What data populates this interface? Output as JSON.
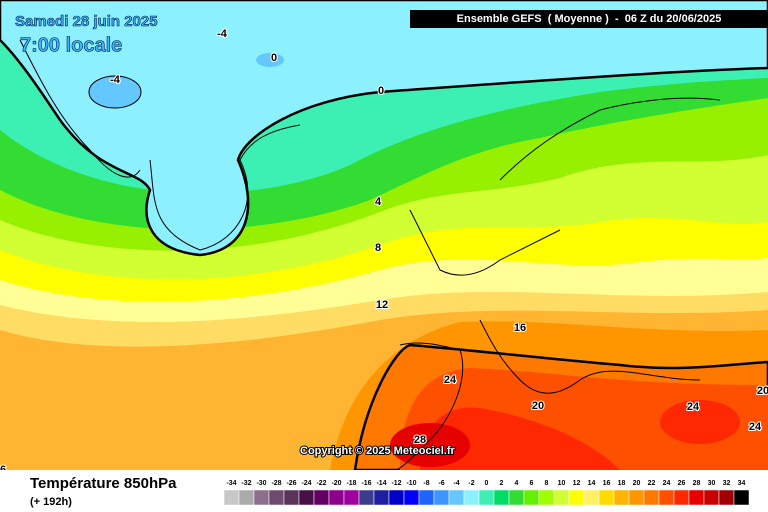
{
  "header": {
    "date": "Samedi 28 juin 2025",
    "time": "7:00 locale",
    "model": "Ensemble GEFS  ( Moyenne )  -  06 Z du 20/06/2025"
  },
  "copyright": "Copyright © 2025 Meteociel.fr",
  "footer": {
    "title": "Température 850hPa",
    "lead": "(+ 192h)"
  },
  "contour_labels": [
    -4,
    -4,
    0,
    0,
    4,
    8,
    12,
    16,
    20,
    24,
    24,
    24,
    20,
    28,
    6
  ],
  "scale": [
    {
      "value": -34,
      "color": "#c8c8c8"
    },
    {
      "value": -32,
      "color": "#aaaaaa"
    },
    {
      "value": -30,
      "color": "#8c6e8c"
    },
    {
      "value": -28,
      "color": "#6e4b6e"
    },
    {
      "value": -26,
      "color": "#5a325a"
    },
    {
      "value": -24,
      "color": "#460f46"
    },
    {
      "value": -22,
      "color": "#640064"
    },
    {
      "value": -20,
      "color": "#8c008c"
    },
    {
      "value": -18,
      "color": "#a000a0"
    },
    {
      "value": -16,
      "color": "#3c3c8c"
    },
    {
      "value": -14,
      "color": "#1e1ea0"
    },
    {
      "value": -12,
      "color": "#0000c8"
    },
    {
      "value": -10,
      "color": "#0000ff"
    },
    {
      "value": -8,
      "color": "#1e64ff"
    },
    {
      "value": -6,
      "color": "#3c96ff"
    },
    {
      "value": -4,
      "color": "#64c8ff"
    },
    {
      "value": -2,
      "color": "#8cf0ff"
    },
    {
      "value": 0,
      "color": "#3cf0b4"
    },
    {
      "value": 2,
      "color": "#00dc64"
    },
    {
      "value": 4,
      "color": "#32dc32"
    },
    {
      "value": 6,
      "color": "#64f000"
    },
    {
      "value": 8,
      "color": "#a0ff00"
    },
    {
      "value": 10,
      "color": "#d2ff32"
    },
    {
      "value": 12,
      "color": "#ffff00"
    },
    {
      "value": 14,
      "color": "#fff064"
    },
    {
      "value": 16,
      "color": "#ffdc00"
    },
    {
      "value": 18,
      "color": "#ffb400"
    },
    {
      "value": 20,
      "color": "#ff9600"
    },
    {
      "value": 22,
      "color": "#ff7800"
    },
    {
      "value": 24,
      "color": "#ff5000"
    },
    {
      "value": 26,
      "color": "#ff2800"
    },
    {
      "value": 28,
      "color": "#e60000"
    },
    {
      "value": 30,
      "color": "#c80000"
    },
    {
      "value": 32,
      "color": "#a00000"
    },
    {
      "value": 34,
      "color": "#000000"
    }
  ]
}
